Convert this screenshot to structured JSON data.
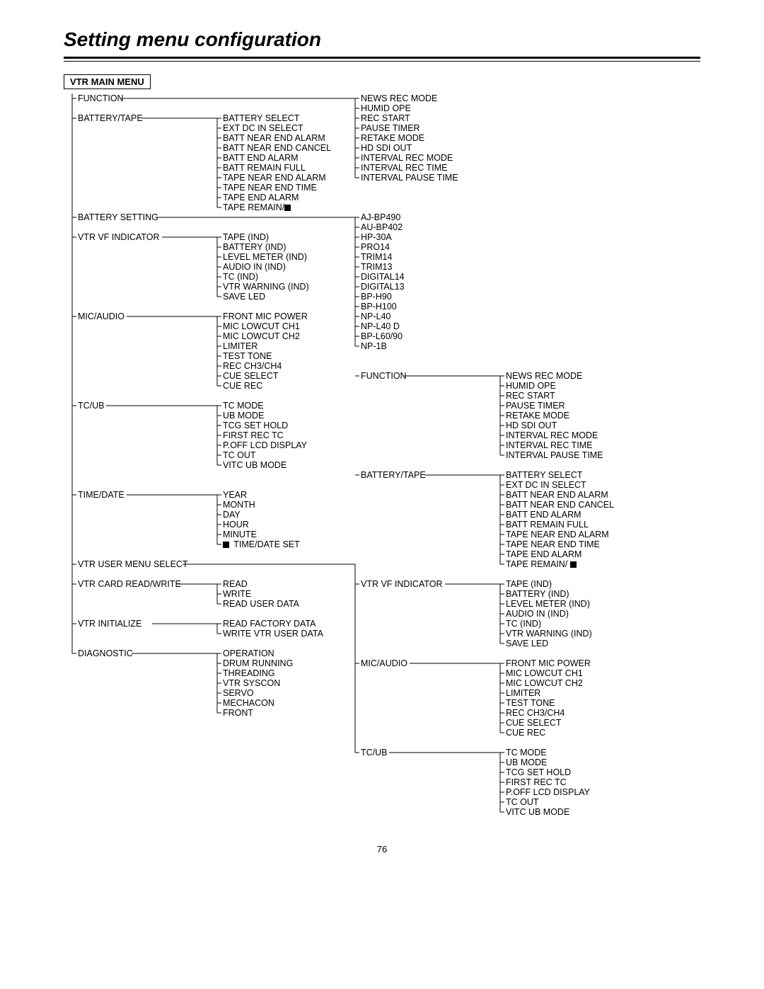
{
  "title": "Setting menu configuration",
  "root_label": "VTR MAIN MENU",
  "page_number": "76",
  "colors": {
    "text": "#000000",
    "background": "#ffffff"
  },
  "font": {
    "family": "Arial",
    "title_size_pt": 21,
    "body_size_pt": 9.5
  },
  "layout": {
    "col_x": {
      "left_l1": 20,
      "left_l2": 225,
      "mid": 420,
      "right_l1": 625,
      "right_l2": 10
    },
    "line_height": 14
  },
  "left_l1": [
    {
      "label": "FUNCTION",
      "y": 0
    },
    {
      "label": "BATTERY/TAPE",
      "y": 2
    },
    {
      "label": "BATTERY SETTING",
      "y": 12
    },
    {
      "label": "VTR VF INDICATOR",
      "y": 14
    },
    {
      "label": "MIC/AUDIO",
      "y": 22
    },
    {
      "label": "TC/UB",
      "y": 31
    },
    {
      "label": "TIME/DATE",
      "y": 40
    },
    {
      "label": "VTR USER MENU SELECT",
      "y": 47
    },
    {
      "label": "VTR CARD READ/WRITE",
      "y": 49
    },
    {
      "label": "VTR INITIALIZE",
      "y": 53
    },
    {
      "label": "DIAGNOSTIC",
      "y": 56
    }
  ],
  "left_l2_groups": [
    {
      "parent": 1,
      "y": 2,
      "items": [
        "BATTERY SELECT",
        "EXT DC IN SELECT",
        "BATT NEAR END ALARM",
        "BATT NEAR END CANCEL",
        "BATT END ALARM",
        "BATT REMAIN FULL",
        "TAPE NEAR END ALARM",
        "TAPE NEAR END TIME",
        "TAPE END ALARM",
        "TAPE REMAIN/■"
      ]
    },
    {
      "parent": 3,
      "y": 14,
      "items": [
        "TAPE (IND)",
        "BATTERY (IND)",
        "LEVEL METER (IND)",
        "AUDIO IN (IND)",
        "TC (IND)",
        "VTR WARNING (IND)",
        "SAVE LED"
      ]
    },
    {
      "parent": 4,
      "y": 22,
      "items": [
        "FRONT MIC POWER",
        "MIC LOWCUT CH1",
        "MIC LOWCUT CH2",
        "LIMITER",
        "TEST TONE",
        "REC CH3/CH4",
        "CUE SELECT",
        "CUE REC"
      ]
    },
    {
      "parent": 5,
      "y": 31,
      "items": [
        "TC MODE",
        "UB MODE",
        "TCG SET HOLD",
        "FIRST REC TC",
        "P.OFF LCD DISPLAY",
        "TC OUT",
        "VITC UB MODE"
      ]
    },
    {
      "parent": 6,
      "y": 40,
      "items": [
        "YEAR",
        "MONTH",
        "DAY",
        "HOUR",
        "MINUTE",
        "■ TIME/DATE SET"
      ]
    },
    {
      "parent": 8,
      "y": 49,
      "items": [
        "READ",
        "WRITE",
        "READ USER DATA"
      ]
    },
    {
      "parent": 9,
      "y": 53,
      "items": [
        "READ FACTORY DATA",
        "WRITE VTR USER DATA"
      ]
    },
    {
      "parent": 10,
      "y": 56,
      "items": [
        "OPERATION",
        "DRUM RUNNING",
        "THREADING",
        "VTR SYSCON",
        "SERVO",
        "MECHACON",
        "FRONT"
      ]
    }
  ],
  "mid_groups": [
    {
      "y": 0,
      "from_l1": 0,
      "items": [
        "NEWS REC MODE",
        "HUMID OPE",
        "REC START",
        "PAUSE TIMER",
        "RETAKE MODE",
        "HD SDI OUT",
        "INTERVAL REC MODE",
        "INTERVAL REC TIME",
        "INTERVAL PAUSE TIME"
      ]
    },
    {
      "y": 12,
      "from_l1": 2,
      "items": [
        "AJ-BP490",
        "AU-BP402",
        "HP-30A",
        "PRO14",
        "TRIM14",
        "TRIM13",
        "DIGITAL14",
        "DIGITAL13",
        "BP-H90",
        "BP-H100",
        "NP-L40",
        "NP-L40 D",
        "BP-L60/90",
        "NP-1B"
      ]
    }
  ],
  "right_l1": [
    {
      "label": "FUNCTION",
      "y": 28,
      "from_l1": 7
    },
    {
      "label": "BATTERY/TAPE",
      "y": 38
    },
    {
      "label": "VTR VF INDICATOR",
      "y": 49
    },
    {
      "label": "MIC/AUDIO",
      "y": 57
    },
    {
      "label": "TC/UB",
      "y": 66
    }
  ],
  "right_l2_groups": [
    {
      "parent": 0,
      "y": 28,
      "items": [
        "NEWS REC MODE",
        "HUMID OPE",
        "REC START",
        "PAUSE TIMER",
        "RETAKE MODE",
        "HD SDI OUT",
        "INTERVAL REC MODE",
        "INTERVAL REC TIME",
        "INTERVAL PAUSE TIME"
      ]
    },
    {
      "parent": 1,
      "y": 38,
      "items": [
        "BATTERY SELECT",
        "EXT DC IN SELECT",
        "BATT NEAR END ALARM",
        "BATT NEAR END CANCEL",
        "BATT END ALARM",
        "BATT REMAIN FULL",
        "TAPE NEAR END ALARM",
        "TAPE NEAR END TIME",
        "TAPE END ALARM",
        "TAPE REMAIN/ ■"
      ]
    },
    {
      "parent": 2,
      "y": 49,
      "items": [
        "TAPE (IND)",
        "BATTERY (IND)",
        "LEVEL METER (IND)",
        "AUDIO IN (IND)",
        "TC (IND)",
        "VTR WARNING (IND)",
        "SAVE LED"
      ]
    },
    {
      "parent": 3,
      "y": 57,
      "items": [
        "FRONT MIC POWER",
        "MIC LOWCUT CH1",
        "MIC LOWCUT CH2",
        "LIMITER",
        "TEST TONE",
        "REC CH3/CH4",
        "CUE SELECT",
        "CUE REC"
      ]
    },
    {
      "parent": 4,
      "y": 66,
      "items": [
        "TC MODE",
        "UB MODE",
        "TCG SET HOLD",
        "FIRST REC TC",
        "P.OFF LCD DISPLAY",
        "TC OUT",
        "VITC UB MODE"
      ]
    }
  ]
}
